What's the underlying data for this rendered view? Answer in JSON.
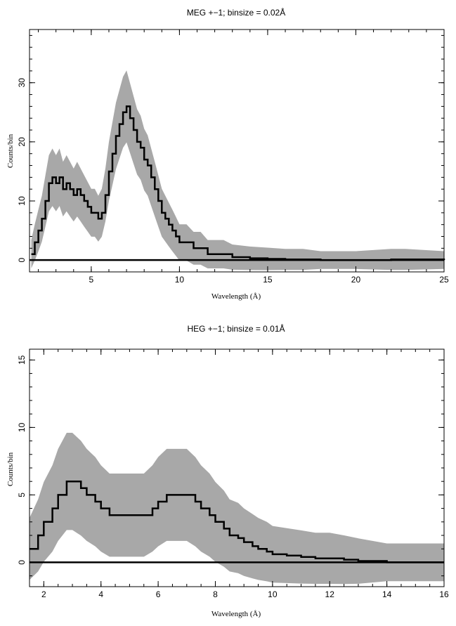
{
  "chart_data": [
    {
      "type": "line",
      "title": "MEG +−1; binsize = 0.02Å",
      "xlabel": "Wavelength (Å)",
      "ylabel": "Counts/bin",
      "xlim": [
        1.5,
        25
      ],
      "ylim": [
        -2,
        39
      ],
      "xticks": [
        5,
        10,
        15,
        20,
        25
      ],
      "xtick_labels": [
        "5",
        "10",
        "15",
        "20",
        "25"
      ],
      "yticks": [
        0,
        10,
        20,
        30
      ],
      "ytick_labels": [
        "0",
        "10",
        "20",
        "30"
      ],
      "style": "histogram step with error bars",
      "grid": false,
      "series": [
        {
          "role": "counts",
          "color": "#000000",
          "x": [
            1.6,
            1.8,
            2.0,
            2.2,
            2.4,
            2.6,
            2.8,
            3.0,
            3.2,
            3.4,
            3.6,
            3.8,
            4.0,
            4.2,
            4.4,
            4.6,
            4.8,
            5.0,
            5.2,
            5.4,
            5.6,
            5.8,
            6.0,
            6.2,
            6.4,
            6.6,
            6.8,
            7.0,
            7.2,
            7.4,
            7.6,
            7.8,
            8.0,
            8.2,
            8.4,
            8.6,
            8.8,
            9.0,
            9.2,
            9.4,
            9.6,
            9.8,
            10.0,
            10.4,
            10.8,
            11.2,
            11.6,
            12.0,
            12.5,
            13.0,
            14.0,
            15.0,
            16.0,
            17.0,
            18.0,
            20.0,
            22.0,
            22.8,
            25.0
          ],
          "y": [
            1,
            3,
            5,
            7,
            10,
            13,
            14,
            13,
            14,
            12,
            13,
            12,
            11,
            12,
            11,
            10,
            9,
            8,
            8,
            7,
            8,
            11,
            15,
            18,
            21,
            23,
            25,
            26,
            24,
            22,
            20,
            19,
            17,
            16,
            14,
            12,
            10,
            8,
            7,
            6,
            5,
            4,
            3,
            3,
            2,
            2,
            1,
            1,
            1,
            0.5,
            0.3,
            0.2,
            0.1,
            0.1,
            0,
            0,
            0.1,
            0.1,
            0
          ]
        },
        {
          "role": "error band",
          "color": "#a8a8a8",
          "half_width": 1.5
        }
      ]
    },
    {
      "type": "line",
      "title": "HEG +−1; binsize = 0.01Å",
      "xlabel": "Wavelength (Å)",
      "ylabel": "Counts/bin",
      "xlim": [
        1.5,
        16
      ],
      "ylim": [
        -1.8,
        15.8
      ],
      "xticks": [
        2,
        4,
        6,
        8,
        10,
        12,
        14,
        16
      ],
      "xtick_labels": [
        "2",
        "4",
        "6",
        "8",
        "10",
        "12",
        "14",
        "16"
      ],
      "yticks": [
        0,
        5,
        10,
        15
      ],
      "ytick_labels": [
        "0",
        "5",
        "10",
        "15"
      ],
      "style": "histogram step with error bars",
      "grid": false,
      "series": [
        {
          "role": "counts",
          "color": "#000000",
          "x": [
            1.5,
            1.8,
            2.0,
            2.3,
            2.5,
            2.8,
            3.0,
            3.3,
            3.5,
            3.8,
            4.0,
            4.3,
            4.5,
            4.8,
            5.0,
            5.3,
            5.5,
            5.8,
            6.0,
            6.3,
            6.5,
            6.8,
            7.0,
            7.3,
            7.5,
            7.8,
            8.0,
            8.3,
            8.5,
            8.8,
            9.0,
            9.3,
            9.5,
            9.8,
            10.0,
            10.5,
            11.0,
            11.5,
            12.0,
            12.5,
            13.0,
            14.0,
            15.0,
            16.0
          ],
          "y": [
            1,
            2,
            3,
            4,
            5,
            6,
            6,
            5.5,
            5,
            4.5,
            4,
            3.5,
            3.5,
            3.5,
            3.5,
            3.5,
            3.5,
            4,
            4.5,
            5,
            5,
            5,
            5,
            4.5,
            4,
            3.5,
            3,
            2.5,
            2,
            1.8,
            1.5,
            1.2,
            1,
            0.8,
            0.6,
            0.5,
            0.4,
            0.3,
            0.3,
            0.2,
            0.1,
            0,
            0,
            0
          ]
        },
        {
          "role": "error band",
          "color": "#a8a8a8",
          "half_width": 1.4
        }
      ]
    }
  ]
}
